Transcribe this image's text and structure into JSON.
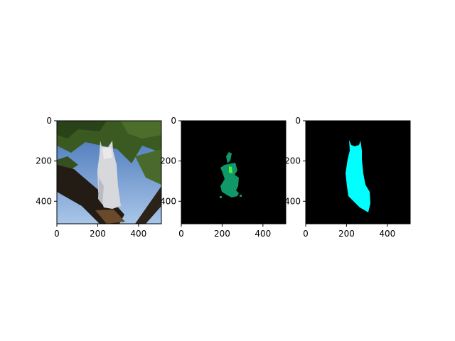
{
  "figure": {
    "background": "#ffffff"
  },
  "chart_data": [
    {
      "type": "image",
      "content": "photo of a white cat sitting on a tree branch, green leaves and blue sky behind",
      "xlim": [
        0,
        512
      ],
      "ylim": [
        512,
        0
      ],
      "xticks": [
        0,
        200,
        400
      ],
      "yticks": [
        0,
        200,
        400
      ],
      "colors": {
        "sky": "#5a86c4",
        "leaves": "#3b5a22",
        "branch": "#231c14",
        "cat": "#d7d8dc"
      }
    },
    {
      "type": "image",
      "content": "segmentation mask: green partial cat region on black background",
      "xlim": [
        0,
        512
      ],
      "ylim": [
        512,
        0
      ],
      "xticks": [
        0,
        200,
        400
      ],
      "yticks": [
        0,
        200,
        400
      ],
      "colors": {
        "background": "#000000",
        "region": "#109868",
        "highlight": "#50f040"
      }
    },
    {
      "type": "image",
      "content": "ground-truth mask: cyan cat silhouette on black background",
      "xlim": [
        0,
        512
      ],
      "ylim": [
        512,
        0
      ],
      "xticks": [
        0,
        200,
        400
      ],
      "yticks": [
        0,
        200,
        400
      ],
      "colors": {
        "background": "#000000",
        "region": "#00ffff"
      }
    }
  ]
}
